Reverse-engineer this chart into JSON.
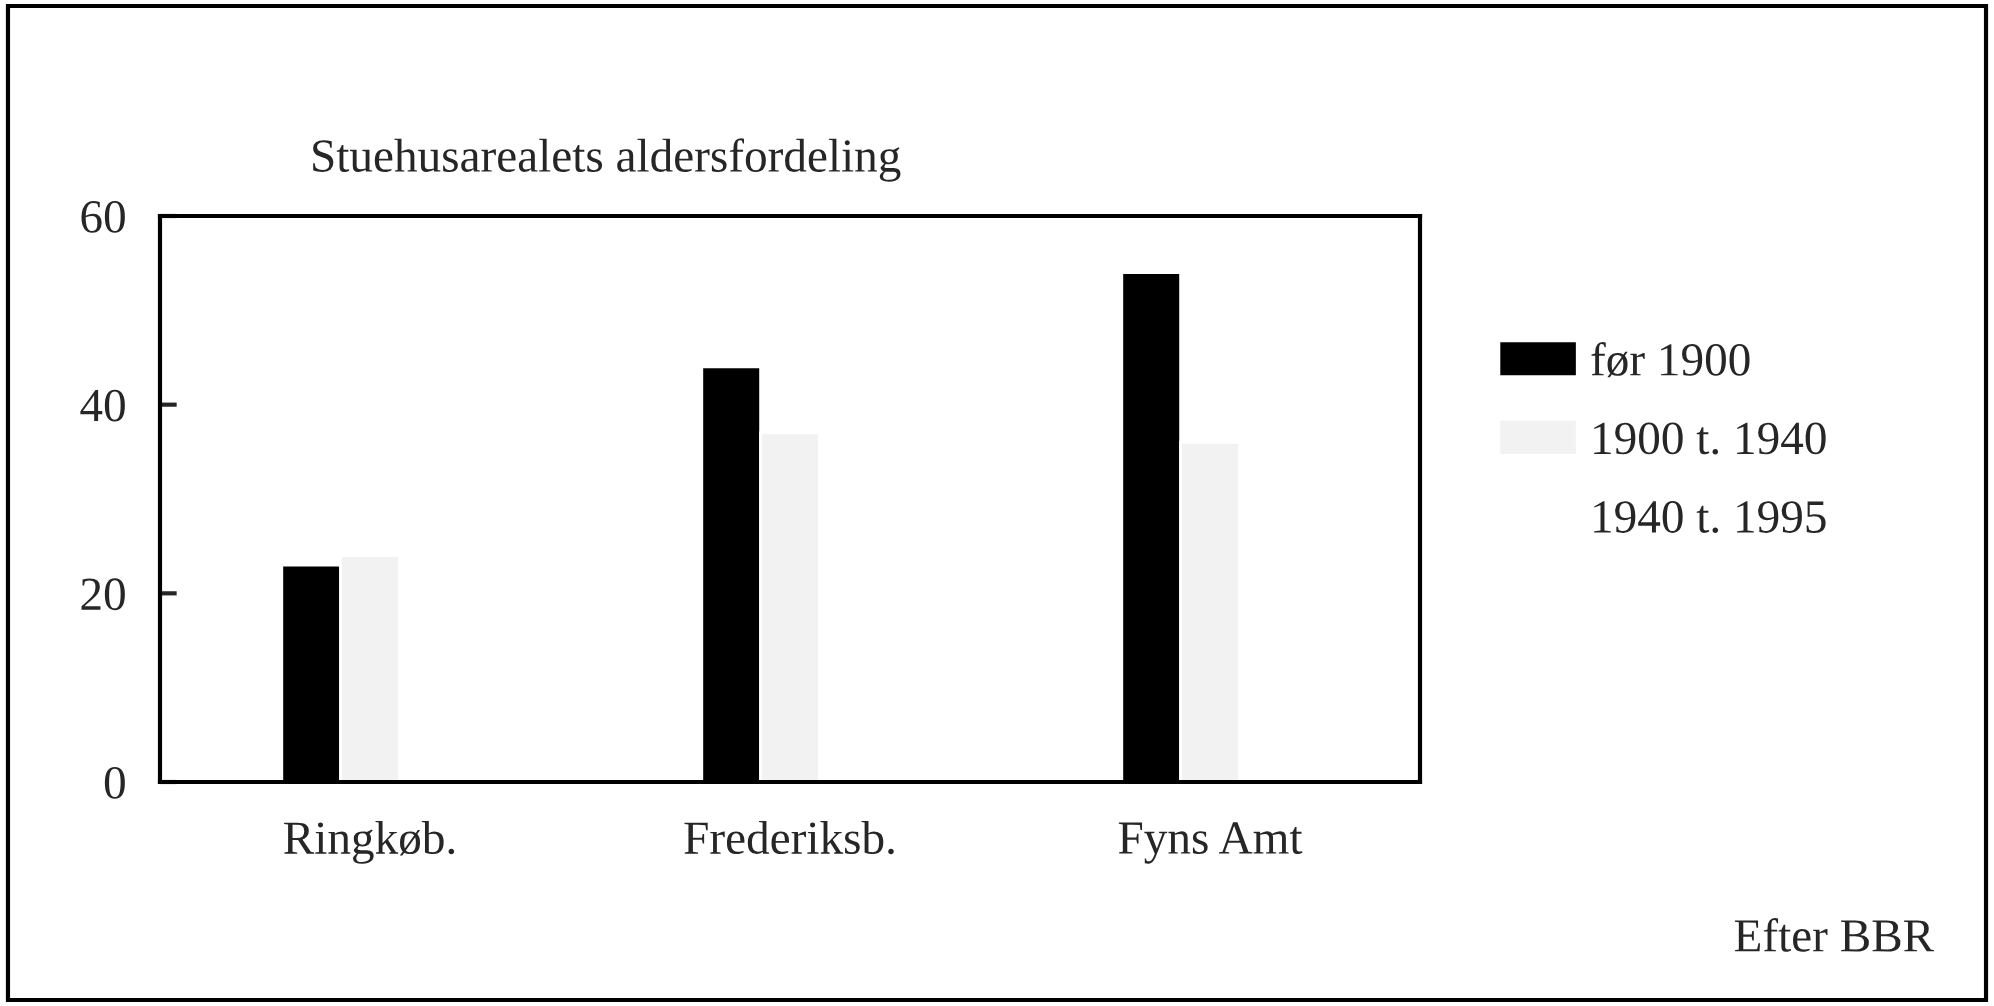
{
  "chart_data": {
    "type": "bar",
    "title": "Stuehusarealets aldersfordeling",
    "categories": [
      "Ringkøb.",
      "Frederiksb.",
      "Fyns Amt"
    ],
    "series": [
      {
        "name": "før 1900",
        "color": "#000000",
        "values": [
          23,
          44,
          54
        ]
      },
      {
        "name": "1900 t. 1940",
        "color": "#f2f2f2",
        "values": [
          24,
          37,
          36
        ]
      },
      {
        "name": "1940 t. 1995",
        "values": [
          null,
          null,
          null
        ]
      }
    ],
    "ylim": [
      0,
      60
    ],
    "yticks": [
      0,
      20,
      40,
      60
    ],
    "grid": false,
    "legend": "right",
    "annotations": [
      "Efter BBR"
    ]
  }
}
